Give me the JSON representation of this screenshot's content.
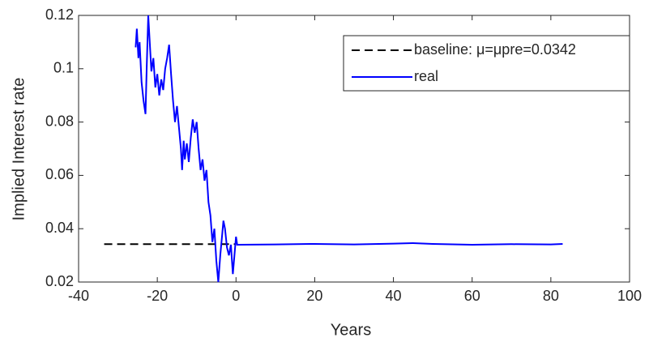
{
  "chart_data": {
    "type": "line",
    "xlabel": "Years",
    "ylabel": "Implied Interest rate",
    "xlim": [
      -40,
      100
    ],
    "xticks": [
      -40,
      -20,
      0,
      20,
      40,
      60,
      80,
      100
    ],
    "ylim": [
      0.02,
      0.12
    ],
    "yticks": [
      0.02,
      0.04,
      0.06,
      0.08,
      0.1,
      0.12
    ],
    "legend": "upper right",
    "series": [
      {
        "name": "baseline: μ=μpre=0.0342",
        "color": "#000000",
        "dashed": true,
        "x": [
          -33.5,
          0
        ],
        "values": [
          0.0342,
          0.0342
        ]
      },
      {
        "name": "real",
        "color": "#0000ff",
        "dashed": false,
        "x": [
          -25.5,
          -25.2,
          -24.8,
          -24.5,
          -24,
          -23.5,
          -23,
          -22.7,
          -22.3,
          -22,
          -21.5,
          -21,
          -20.5,
          -20,
          -19.5,
          -19,
          -18.5,
          -18,
          -17.5,
          -17,
          -16.5,
          -16,
          -15.5,
          -15,
          -14.5,
          -14,
          -13.7,
          -13.3,
          -13,
          -12.5,
          -12,
          -11.5,
          -11,
          -10.5,
          -10,
          -9.5,
          -9,
          -8.5,
          -8,
          -7.5,
          -7,
          -6.5,
          -6,
          -5.5,
          -5,
          -4.5,
          -4,
          -3.5,
          -3.2,
          -2.8,
          -2.3,
          -1.8,
          -1.3,
          -0.8,
          -0.4,
          0,
          0.3,
          10,
          20,
          30,
          40,
          45,
          50,
          60,
          70,
          80,
          83
        ],
        "values": [
          0.108,
          0.115,
          0.104,
          0.11,
          0.095,
          0.088,
          0.083,
          0.1,
          0.12,
          0.112,
          0.099,
          0.104,
          0.093,
          0.098,
          0.09,
          0.096,
          0.092,
          0.1,
          0.104,
          0.109,
          0.098,
          0.088,
          0.08,
          0.086,
          0.078,
          0.07,
          0.062,
          0.073,
          0.066,
          0.072,
          0.065,
          0.074,
          0.081,
          0.076,
          0.08,
          0.07,
          0.062,
          0.066,
          0.058,
          0.062,
          0.05,
          0.045,
          0.035,
          0.04,
          0.028,
          0.02,
          0.03,
          0.038,
          0.043,
          0.04,
          0.033,
          0.03,
          0.034,
          0.023,
          0.03,
          0.037,
          0.034,
          0.0341,
          0.0343,
          0.0341,
          0.0344,
          0.0346,
          0.0343,
          0.034,
          0.0342,
          0.0341,
          0.0343
        ]
      }
    ]
  }
}
